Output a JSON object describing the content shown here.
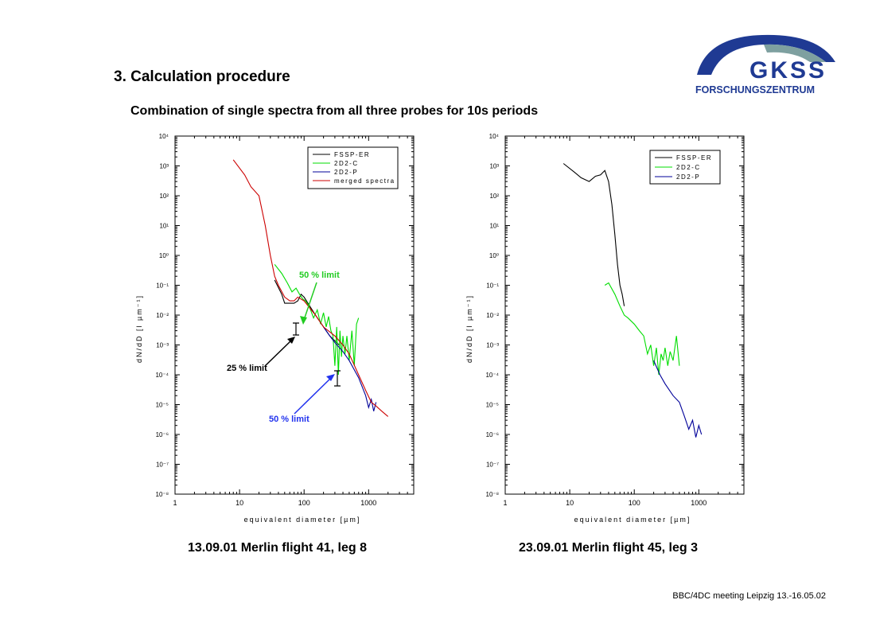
{
  "header": {
    "section_title": "3. Calculation procedure",
    "subtitle": "Combination of single spectra from all three probes for 10s periods"
  },
  "logo": {
    "name": "GKSS",
    "tagline": "FORSCHUNGSZENTRUM",
    "color": "#1f3a93"
  },
  "captions": [
    "13.09.01 Merlin flight 41, leg 8",
    "23.09.01 Merlin flight 45, leg 3"
  ],
  "footer": "BBC/4DC meeting Leipzig 13.-16.05.02",
  "colors": {
    "fssp": "#000000",
    "c2dc": "#00dd00",
    "p2dp": "#000099",
    "merged": "#cc0000",
    "limit50_green": "#22cc22",
    "limit50_blue": "#2233ee"
  },
  "chart_data": [
    {
      "type": "line",
      "xlabel": "equivalent diameter [µm]",
      "ylabel": "dN/dD [l µm⁻¹]",
      "xscale": "log",
      "yscale": "log",
      "xlim": [
        1,
        5000
      ],
      "ylim": [
        1e-08,
        10000.0
      ],
      "xticks": [
        "1",
        "10",
        "100",
        "1000"
      ],
      "yticks": [
        "10⁻⁸",
        "10⁻⁷",
        "10⁻⁶",
        "10⁻⁵",
        "10⁻⁴",
        "10⁻³",
        "10⁻²",
        "10⁻¹",
        "10⁰",
        "10¹",
        "10²",
        "10³",
        "10⁴"
      ],
      "legend_position": "top-right",
      "series": [
        {
          "name": "FSSP-ER",
          "color": "#000000",
          "x": [
            35,
            45,
            50,
            60,
            70,
            80,
            90,
            100,
            150,
            250,
            350
          ],
          "y": [
            0.15,
            0.05,
            0.025,
            0.025,
            0.025,
            0.03,
            0.05,
            0.04,
            0.01,
            0.002,
            0.001
          ]
        },
        {
          "name": "2D2-C",
          "color": "#00dd00",
          "x": [
            35,
            45,
            55,
            65,
            75,
            85,
            95,
            105,
            120,
            140,
            160,
            180,
            200,
            220,
            240,
            260,
            280,
            300,
            320,
            340,
            360,
            380,
            400,
            430,
            460,
            500,
            550,
            600,
            650,
            700
          ],
          "y": [
            0.5,
            0.25,
            0.12,
            0.06,
            0.08,
            0.05,
            0.035,
            0.03,
            0.02,
            0.008,
            0.015,
            0.005,
            0.012,
            0.004,
            0.009,
            0.003,
            0.002,
            0.0002,
            0.004,
            0.0001,
            0.003,
            0.0004,
            0.002,
            0.0005,
            0.002,
            0.0003,
            0.003,
            0.0002,
            0.005,
            0.008
          ]
        },
        {
          "name": "2D2-P",
          "color": "#000099",
          "x": [
            200,
            250,
            300,
            400,
            500,
            700,
            900,
            1000,
            1100,
            1200,
            1300
          ],
          "y": [
            0.004,
            0.002,
            0.0012,
            0.0006,
            0.0003,
            8e-05,
            2e-05,
            8e-06,
            1.5e-05,
            6e-06,
            1.2e-05
          ]
        },
        {
          "name": "merged spectra",
          "color": "#cc0000",
          "x": [
            8,
            12,
            15,
            20,
            25,
            30,
            35,
            40,
            50,
            60,
            70,
            80,
            100,
            150,
            200,
            300,
            400,
            500,
            700,
            900,
            1100,
            1300,
            1600,
            2000
          ],
          "y": [
            1600,
            500,
            200,
            100,
            10,
            1,
            0.2,
            0.1,
            0.04,
            0.03,
            0.03,
            0.04,
            0.03,
            0.01,
            0.004,
            0.002,
            0.001,
            0.0005,
            0.0001,
            3e-05,
            1.2e-05,
            9e-06,
            6e-06,
            4e-06
          ]
        }
      ],
      "annotations": [
        {
          "text": "50 % limit",
          "color": "#22cc22"
        },
        {
          "text": "25 % limit",
          "color": "#000000"
        },
        {
          "text": "50 % limit",
          "color": "#2233ee"
        }
      ]
    },
    {
      "type": "line",
      "xlabel": "equivalent diameter [µm]",
      "ylabel": "dN/dD [l µm⁻¹]",
      "xscale": "log",
      "yscale": "log",
      "xlim": [
        1,
        5000
      ],
      "ylim": [
        1e-08,
        10000.0
      ],
      "xticks": [
        "1",
        "10",
        "100",
        "1000"
      ],
      "yticks": [
        "10⁻⁸",
        "10⁻⁷",
        "10⁻⁶",
        "10⁻⁵",
        "10⁻⁴",
        "10⁻³",
        "10⁻²",
        "10⁻¹",
        "10⁰",
        "10¹",
        "10²",
        "10³",
        "10⁴"
      ],
      "legend_position": "top-right",
      "series": [
        {
          "name": "FSSP-ER",
          "color": "#000000",
          "x": [
            8,
            12,
            15,
            20,
            25,
            30,
            35,
            40,
            45,
            50,
            55,
            60,
            65,
            70
          ],
          "y": [
            1200,
            600,
            400,
            300,
            450,
            500,
            700,
            300,
            50,
            5,
            0.5,
            0.1,
            0.05,
            0.02
          ]
        },
        {
          "name": "2D2-C",
          "color": "#00dd00",
          "x": [
            35,
            40,
            50,
            60,
            70,
            80,
            100,
            120,
            140,
            160,
            180,
            200,
            220,
            240,
            260,
            280,
            300,
            330,
            360,
            400,
            450,
            500
          ],
          "y": [
            0.1,
            0.12,
            0.05,
            0.02,
            0.01,
            0.008,
            0.005,
            0.003,
            0.002,
            0.0005,
            0.001,
            0.0002,
            0.0008,
            0.0001,
            0.0005,
            0.0003,
            0.0008,
            0.0002,
            0.0006,
            0.0003,
            0.002,
            0.0002
          ]
        },
        {
          "name": "2D2-P",
          "color": "#000099",
          "x": [
            200,
            250,
            300,
            400,
            500,
            600,
            700,
            800,
            900,
            1000,
            1100
          ],
          "y": [
            0.0003,
            0.0001,
            5e-05,
            2e-05,
            1.2e-05,
            4e-06,
            1.5e-06,
            3e-06,
            8e-07,
            2e-06,
            1e-06
          ]
        }
      ]
    }
  ]
}
